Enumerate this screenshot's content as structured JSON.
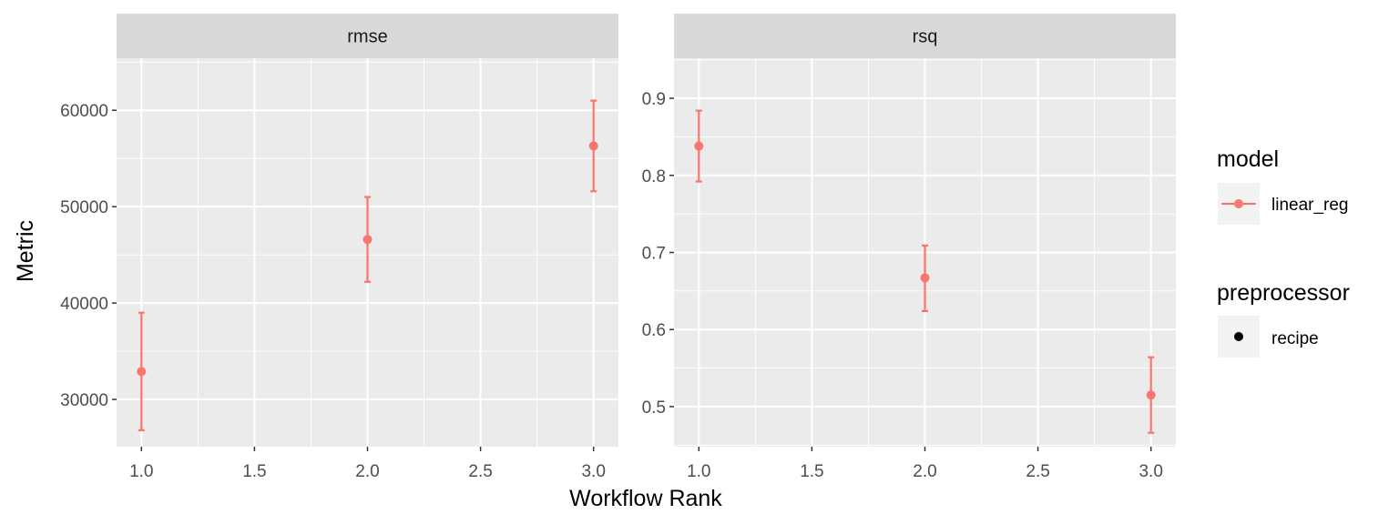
{
  "chart_data": {
    "type": "scatter",
    "xlabel": "Workflow Rank",
    "ylabel": "Metric",
    "colors": {
      "series": "#F8766D",
      "panel_bg": "#EBEBEB",
      "strip_bg": "#D9D9D9",
      "grid": "#FFFFFF"
    },
    "x_ticks": [
      "1.0",
      "1.5",
      "2.0",
      "2.5",
      "3.0"
    ],
    "x_tick_values": [
      1.0,
      1.5,
      2.0,
      2.5,
      3.0
    ],
    "xlim": [
      0.89,
      3.11
    ],
    "grid": true,
    "legend_position": "right",
    "panels": [
      {
        "strip": "rmse",
        "ylim": [
          25100,
          65400
        ],
        "y_ticks": [
          "30000",
          "40000",
          "50000",
          "60000"
        ],
        "y_tick_values": [
          30000,
          40000,
          50000,
          60000
        ],
        "points": [
          {
            "x": 1,
            "y": 32900,
            "lower": 26800,
            "upper": 39000
          },
          {
            "x": 2,
            "y": 46600,
            "lower": 42200,
            "upper": 51000
          },
          {
            "x": 3,
            "y": 56300,
            "lower": 51600,
            "upper": 61000
          }
        ]
      },
      {
        "strip": "rsq",
        "ylim": [
          0.448,
          0.952
        ],
        "y_ticks": [
          "0.5",
          "0.6",
          "0.7",
          "0.8",
          "0.9"
        ],
        "y_tick_values": [
          0.5,
          0.6,
          0.7,
          0.8,
          0.9
        ],
        "points": [
          {
            "x": 1,
            "y": 0.838,
            "lower": 0.792,
            "upper": 0.884
          },
          {
            "x": 2,
            "y": 0.667,
            "lower": 0.624,
            "upper": 0.709
          },
          {
            "x": 3,
            "y": 0.515,
            "lower": 0.466,
            "upper": 0.564
          }
        ]
      }
    ],
    "legend": {
      "model": {
        "title": "model",
        "items": [
          "linear_reg"
        ]
      },
      "preprocessor": {
        "title": "preprocessor",
        "items": [
          "recipe"
        ]
      }
    }
  }
}
